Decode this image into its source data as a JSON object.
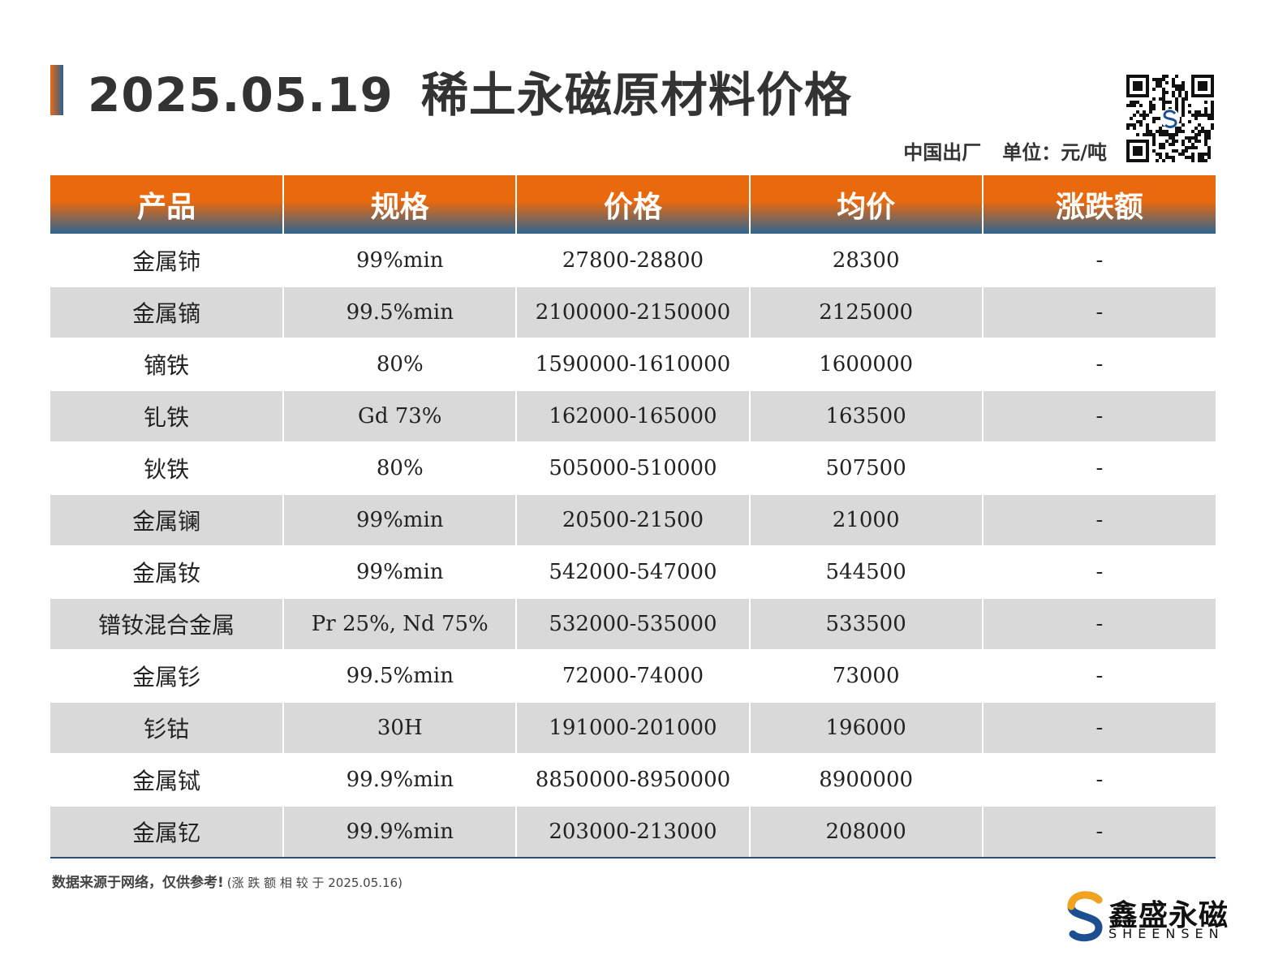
{
  "header": {
    "date": "2025.05.19",
    "title": "稀土永磁原材料价格",
    "origin": "中国出厂",
    "unit": "单位：元/吨"
  },
  "table": {
    "columns": [
      "产品",
      "规格",
      "价格",
      "均价",
      "涨跌额"
    ],
    "rows": [
      {
        "product": "金属铈",
        "spec": "99%min",
        "price": "27800-28800",
        "avg": "28300",
        "change": "-"
      },
      {
        "product": "金属镝",
        "spec": "99.5%min",
        "price": "2100000-2150000",
        "avg": "2125000",
        "change": "-"
      },
      {
        "product": "镝铁",
        "spec": "80%",
        "price": "1590000-1610000",
        "avg": "1600000",
        "change": "-"
      },
      {
        "product": "钆铁",
        "spec": "Gd 73%",
        "price": "162000-165000",
        "avg": "163500",
        "change": "-"
      },
      {
        "product": "钬铁",
        "spec": "80%",
        "price": "505000-510000",
        "avg": "507500",
        "change": "-"
      },
      {
        "product": "金属镧",
        "spec": "99%min",
        "price": "20500-21500",
        "avg": "21000",
        "change": "-"
      },
      {
        "product": "金属钕",
        "spec": "99%min",
        "price": "542000-547000",
        "avg": "544500",
        "change": "-"
      },
      {
        "product": "镨钕混合金属",
        "spec": "Pr 25%, Nd 75%",
        "price": "532000-535000",
        "avg": "533500",
        "change": "-"
      },
      {
        "product": "金属钐",
        "spec": "99.5%min",
        "price": "72000-74000",
        "avg": "73000",
        "change": "-"
      },
      {
        "product": "钐钴",
        "spec": "30H",
        "price": "191000-201000",
        "avg": "196000",
        "change": "-"
      },
      {
        "product": "金属铽",
        "spec": "99.9%min",
        "price": "8850000-8950000",
        "avg": "8900000",
        "change": "-"
      },
      {
        "product": "金属钇",
        "spec": "99.9%min",
        "price": "203000-213000",
        "avg": "208000",
        "change": "-"
      }
    ]
  },
  "footer": {
    "note": "数据来源于网络，仅供参考!",
    "note_sub": "(涨 跌 额 相 较 于 2025.05.16)"
  },
  "logo": {
    "name": "鑫盛永磁",
    "sub": "SHEENSEN"
  },
  "colors": {
    "header_orange": "#e8690e",
    "header_blue": "#2e6590",
    "row_alt": "#d9d9d9"
  }
}
